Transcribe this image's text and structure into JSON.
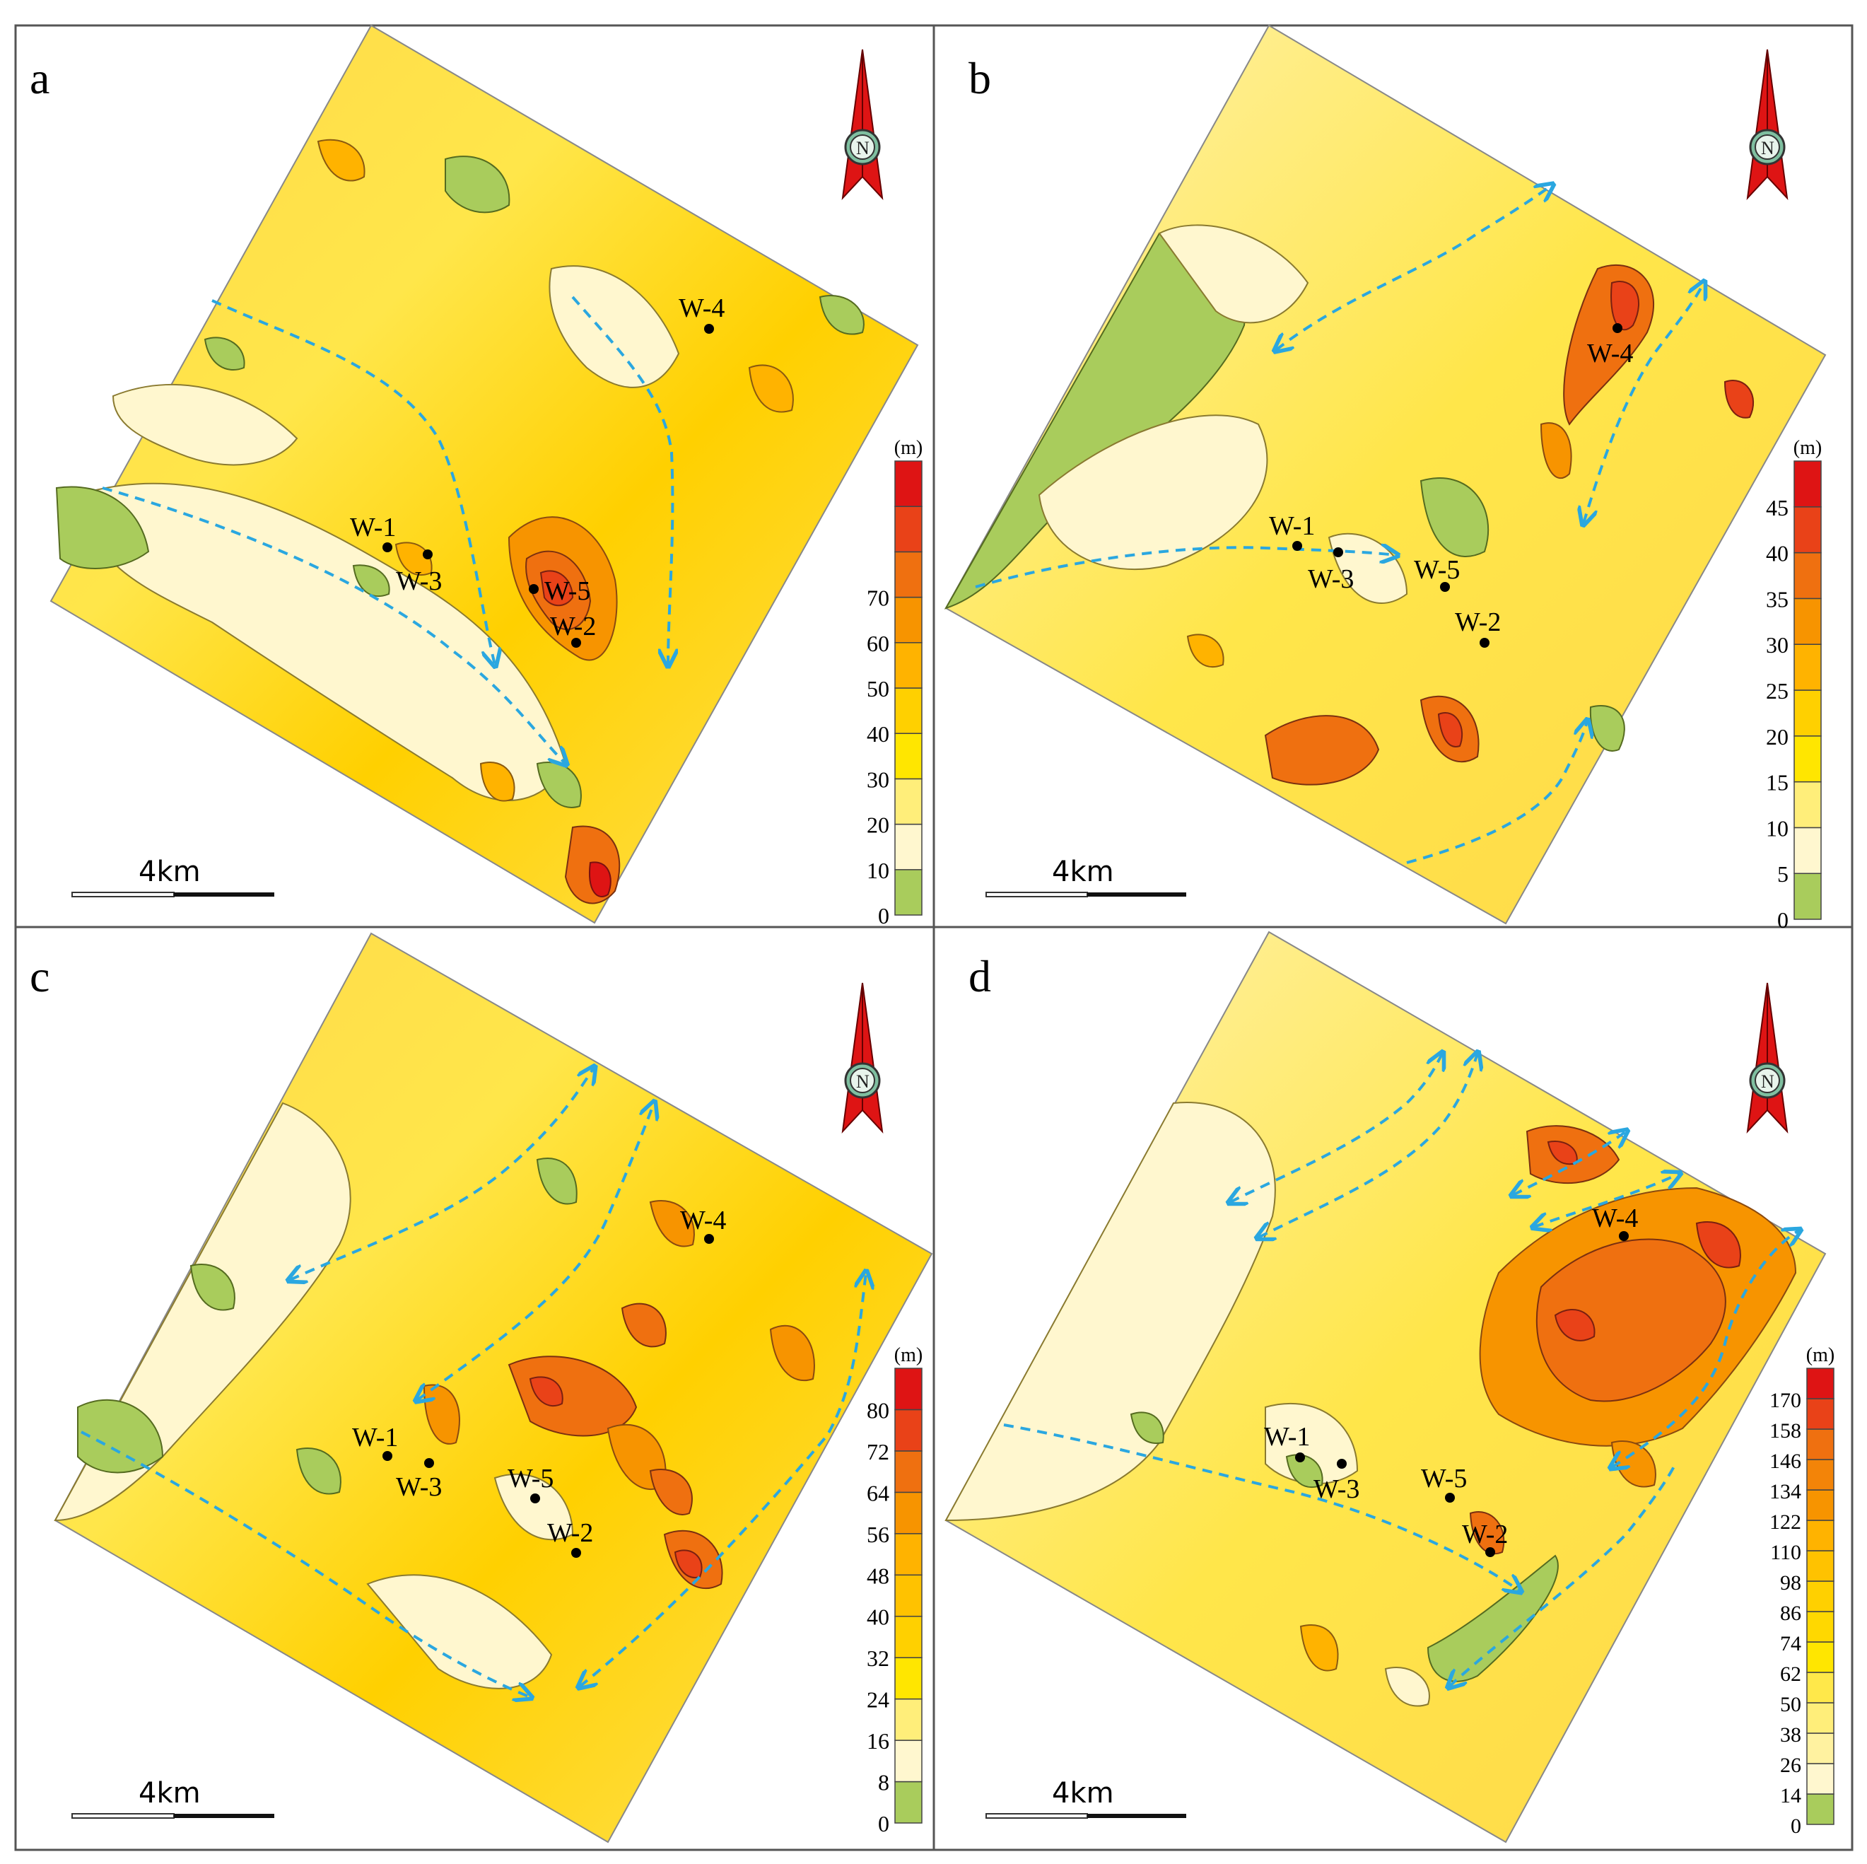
{
  "figure": {
    "panels": [
      {
        "letter": "a",
        "unit": "(m)",
        "scale_label": "4km",
        "legend_ticks": [
          "0",
          "10",
          "20",
          "30",
          "40",
          "50",
          "60",
          "70"
        ],
        "legend_colors": [
          "#a9cc5c",
          "#fff7cf",
          "#ffee7a",
          "#ffe600",
          "#ffd000",
          "#ffb300",
          "#f79400",
          "#ef7010",
          "#e94218",
          "#de1414"
        ],
        "wells": [
          {
            "name": "W-1"
          },
          {
            "name": "W-3"
          },
          {
            "name": "W-5"
          },
          {
            "name": "W-2"
          },
          {
            "name": "W-4"
          }
        ]
      },
      {
        "letter": "b",
        "unit": "(m)",
        "scale_label": "4km",
        "legend_ticks": [
          "0",
          "5",
          "10",
          "15",
          "20",
          "25",
          "30",
          "35",
          "40",
          "45"
        ],
        "legend_colors": [
          "#a9cc5c",
          "#fff7cf",
          "#ffee7a",
          "#ffe600",
          "#ffd000",
          "#ffb300",
          "#f79400",
          "#ef7010",
          "#e94218",
          "#de1414"
        ],
        "wells": [
          {
            "name": "W-1"
          },
          {
            "name": "W-3"
          },
          {
            "name": "W-5"
          },
          {
            "name": "W-2"
          },
          {
            "name": "W-4"
          }
        ]
      },
      {
        "letter": "c",
        "unit": "(m)",
        "scale_label": "4km",
        "legend_ticks": [
          "0",
          "8",
          "16",
          "24",
          "32",
          "40",
          "48",
          "56",
          "64",
          "72",
          "80"
        ],
        "legend_colors": [
          "#a9cc5c",
          "#fff7cf",
          "#ffee7a",
          "#ffe600",
          "#ffd000",
          "#ffc200",
          "#ffb300",
          "#f79400",
          "#ef7010",
          "#e94218",
          "#de1414"
        ],
        "wells": [
          {
            "name": "W-1"
          },
          {
            "name": "W-3"
          },
          {
            "name": "W-5"
          },
          {
            "name": "W-2"
          },
          {
            "name": "W-4"
          }
        ]
      },
      {
        "letter": "d",
        "unit": "(m)",
        "scale_label": "4km",
        "legend_ticks": [
          "0",
          "14",
          "26",
          "38",
          "50",
          "62",
          "74",
          "86",
          "98",
          "110",
          "122",
          "134",
          "146",
          "158",
          "170"
        ],
        "legend_colors": [
          "#a9cc5c",
          "#fff7cf",
          "#fff2a0",
          "#ffee7a",
          "#ffe84a",
          "#ffe600",
          "#ffd800",
          "#ffd000",
          "#ffc200",
          "#ffb300",
          "#f79400",
          "#f38408",
          "#ef7010",
          "#e94218",
          "#de1414"
        ],
        "wells": [
          {
            "name": "W-1"
          },
          {
            "name": "W-3"
          },
          {
            "name": "W-5"
          },
          {
            "name": "W-2"
          },
          {
            "name": "W-4"
          }
        ]
      }
    ]
  }
}
